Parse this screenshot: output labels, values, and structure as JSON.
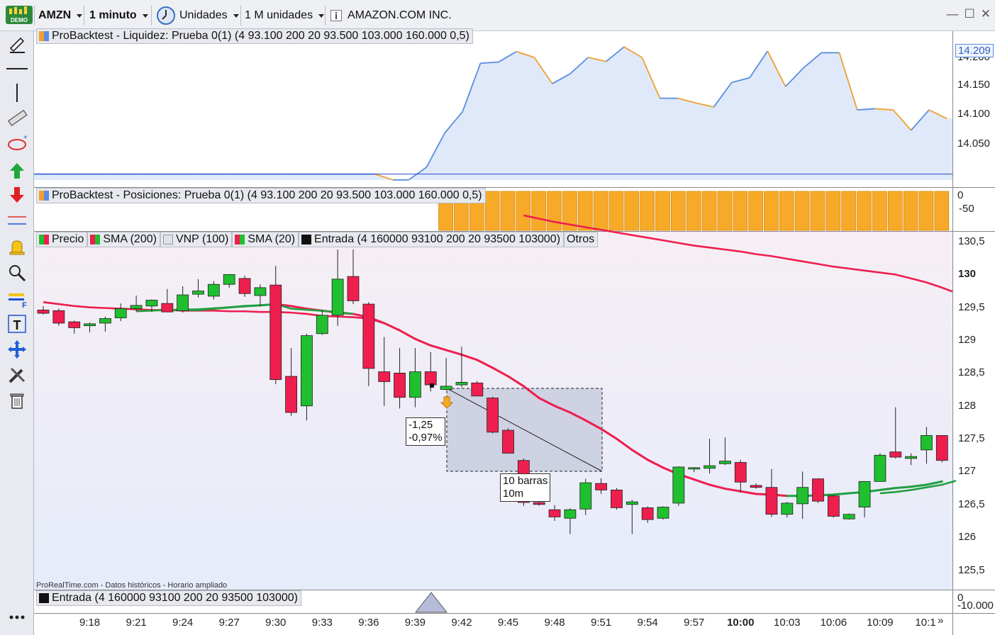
{
  "toolbar": {
    "logo_text": "DEMO",
    "symbol": "AMZN",
    "interval": "1 minuto",
    "units": "Unidades",
    "units_amount": "1 M unidades",
    "info_icon": "info-icon",
    "instrument_name": "AMAZON.COM INC."
  },
  "panels": {
    "liquidity": {
      "title": "ProBacktest - Liquidez: Prueba 0(1) (4 93.100 200 20 93.500 103.000 160.000 0,5)",
      "last_value": "14.209",
      "ticks": [
        "14.200",
        "14.150",
        "14.100",
        "14.050"
      ],
      "values": [
        14000,
        14000,
        14000,
        14000,
        14000,
        14000,
        14000,
        14000,
        14000,
        14000,
        14000,
        14000,
        14000,
        14000,
        14000,
        14000,
        14000,
        14000,
        14000,
        14000,
        13990,
        13990,
        14012,
        14070,
        14107,
        14190,
        14192,
        14210,
        14200,
        14155,
        14172,
        14200,
        14193,
        14218,
        14200,
        14130,
        14130,
        14122,
        14115,
        14157,
        14165,
        14211,
        14150,
        14182,
        14208,
        14208,
        14110,
        14112,
        14110,
        14075,
        14110,
        14095
      ],
      "color_up": "#5b8de0",
      "color_down": "#f0a030"
    },
    "positions": {
      "title": "ProBacktest - Posiciones: Prueba 0(1) (4 93.100 200 20 93.500 103.000 160.000 0,5)",
      "ticks": [
        "0",
        "-50"
      ],
      "start_bar": 26,
      "bar_color": "#f7a928"
    },
    "price": {
      "legend": [
        {
          "label": "Precio",
          "icon": "candles-icon"
        },
        {
          "label": "SMA (200)",
          "icon": "sma-icon"
        },
        {
          "label": "VNP (100)",
          "icon": "vnp-icon"
        },
        {
          "label": "SMA (20)",
          "icon": "sma-icon"
        },
        {
          "label": "Entrada (4 160000 93100 200 20 93500 103000)",
          "icon": "entry-icon"
        },
        {
          "label": "Otros",
          "icon": ""
        }
      ],
      "ticks": [
        "130,5",
        "130",
        "129,5",
        "129",
        "128,5",
        "128",
        "127,5",
        "127",
        "126,5",
        "126",
        "125,5"
      ],
      "bold_tick": "130",
      "source_note": "ProRealTime.com - Datos históricos - Horario ampliado",
      "measure": {
        "change": "-1,25",
        "percent": "-0,97%",
        "bars": "10 barras",
        "duration": "10m"
      }
    },
    "entry": {
      "title": "Entrada (4 160000 93100 200 20 93500 103000)",
      "ticks": [
        "0",
        "-10.000"
      ]
    }
  },
  "xaxis": {
    "labels": [
      "9:18",
      "9:21",
      "9:24",
      "9:27",
      "9:30",
      "9:33",
      "9:36",
      "9:39",
      "9:42",
      "9:45",
      "9:48",
      "9:51",
      "9:54",
      "9:57",
      "10:00",
      "10:03",
      "10:06",
      "10:09",
      "10:1"
    ],
    "bold_label": "10:00"
  },
  "chart_data": {
    "type": "candlestick",
    "candles": [
      {
        "o": 129.46,
        "h": 129.52,
        "l": 129.39,
        "c": 129.41
      },
      {
        "o": 129.45,
        "h": 129.48,
        "l": 129.22,
        "c": 129.26
      },
      {
        "o": 129.28,
        "h": 129.3,
        "l": 129.1,
        "c": 129.19
      },
      {
        "o": 129.22,
        "h": 129.27,
        "l": 129.12,
        "c": 129.25
      },
      {
        "o": 129.26,
        "h": 129.36,
        "l": 129.13,
        "c": 129.33
      },
      {
        "o": 129.34,
        "h": 129.56,
        "l": 129.29,
        "c": 129.48
      },
      {
        "o": 129.48,
        "h": 129.68,
        "l": 129.44,
        "c": 129.53
      },
      {
        "o": 129.52,
        "h": 129.62,
        "l": 129.43,
        "c": 129.61
      },
      {
        "o": 129.56,
        "h": 129.78,
        "l": 129.47,
        "c": 129.43
      },
      {
        "o": 129.45,
        "h": 129.82,
        "l": 129.42,
        "c": 129.69
      },
      {
        "o": 129.7,
        "h": 129.93,
        "l": 129.65,
        "c": 129.75
      },
      {
        "o": 129.67,
        "h": 129.9,
        "l": 129.62,
        "c": 129.85
      },
      {
        "o": 129.85,
        "h": 130.0,
        "l": 129.8,
        "c": 130.0
      },
      {
        "o": 129.94,
        "h": 129.98,
        "l": 129.66,
        "c": 129.71
      },
      {
        "o": 129.68,
        "h": 129.85,
        "l": 129.52,
        "c": 129.8
      },
      {
        "o": 129.84,
        "h": 130.13,
        "l": 128.33,
        "c": 128.4
      },
      {
        "o": 128.45,
        "h": 128.88,
        "l": 127.85,
        "c": 127.9
      },
      {
        "o": 128.0,
        "h": 129.1,
        "l": 127.78,
        "c": 129.07
      },
      {
        "o": 129.1,
        "h": 129.45,
        "l": 129.08,
        "c": 129.38
      },
      {
        "o": 129.38,
        "h": 130.38,
        "l": 129.22,
        "c": 129.93
      },
      {
        "o": 129.97,
        "h": 130.38,
        "l": 129.55,
        "c": 129.6
      },
      {
        "o": 129.55,
        "h": 129.58,
        "l": 128.3,
        "c": 128.57
      },
      {
        "o": 128.52,
        "h": 129.05,
        "l": 128.0,
        "c": 128.37
      },
      {
        "o": 128.5,
        "h": 128.88,
        "l": 127.96,
        "c": 128.13
      },
      {
        "o": 128.13,
        "h": 128.88,
        "l": 127.98,
        "c": 128.52
      },
      {
        "o": 128.52,
        "h": 128.82,
        "l": 128.22,
        "c": 128.32
      },
      {
        "o": 128.25,
        "h": 128.73,
        "l": 128.24,
        "c": 128.3
      },
      {
        "o": 128.32,
        "h": 128.9,
        "l": 128.28,
        "c": 128.36
      },
      {
        "o": 128.35,
        "h": 128.38,
        "l": 128.15,
        "c": 128.15
      },
      {
        "o": 128.12,
        "h": 128.14,
        "l": 127.58,
        "c": 127.6
      },
      {
        "o": 127.63,
        "h": 127.66,
        "l": 127.28,
        "c": 127.28
      },
      {
        "o": 127.17,
        "h": 127.2,
        "l": 126.48,
        "c": 126.53
      },
      {
        "o": 126.53,
        "h": 126.55,
        "l": 126.48,
        "c": 126.5
      },
      {
        "o": 126.42,
        "h": 126.49,
        "l": 126.25,
        "c": 126.31
      },
      {
        "o": 126.29,
        "h": 126.44,
        "l": 126.05,
        "c": 126.42
      },
      {
        "o": 126.43,
        "h": 126.89,
        "l": 126.34,
        "c": 126.83
      },
      {
        "o": 126.82,
        "h": 126.9,
        "l": 126.66,
        "c": 126.72
      },
      {
        "o": 126.72,
        "h": 126.75,
        "l": 126.42,
        "c": 126.45
      },
      {
        "o": 126.5,
        "h": 126.57,
        "l": 126.05,
        "c": 126.54
      },
      {
        "o": 126.45,
        "h": 126.47,
        "l": 126.22,
        "c": 126.27
      },
      {
        "o": 126.29,
        "h": 126.47,
        "l": 126.27,
        "c": 126.46
      },
      {
        "o": 126.52,
        "h": 127.08,
        "l": 126.48,
        "c": 127.07
      },
      {
        "o": 127.04,
        "h": 127.07,
        "l": 126.99,
        "c": 127.06
      },
      {
        "o": 127.05,
        "h": 127.5,
        "l": 126.97,
        "c": 127.09
      },
      {
        "o": 127.12,
        "h": 127.52,
        "l": 127.1,
        "c": 127.16
      },
      {
        "o": 127.14,
        "h": 127.18,
        "l": 126.68,
        "c": 126.84
      },
      {
        "o": 126.79,
        "h": 126.82,
        "l": 126.74,
        "c": 126.76
      },
      {
        "o": 126.76,
        "h": 127.04,
        "l": 126.31,
        "c": 126.35
      },
      {
        "o": 126.35,
        "h": 126.54,
        "l": 126.3,
        "c": 126.52
      },
      {
        "o": 126.51,
        "h": 127.0,
        "l": 126.28,
        "c": 126.76
      },
      {
        "o": 126.89,
        "h": 126.9,
        "l": 126.52,
        "c": 126.55
      },
      {
        "o": 126.63,
        "h": 126.64,
        "l": 126.3,
        "c": 126.32
      },
      {
        "o": 126.28,
        "h": 126.36,
        "l": 126.27,
        "c": 126.35
      },
      {
        "o": 126.46,
        "h": 126.85,
        "l": 126.3,
        "c": 126.85
      },
      {
        "o": 126.85,
        "h": 127.28,
        "l": 126.85,
        "c": 127.25
      },
      {
        "o": 127.3,
        "h": 127.98,
        "l": 127.2,
        "c": 127.22
      },
      {
        "o": 127.2,
        "h": 127.28,
        "l": 127.1,
        "c": 127.23
      },
      {
        "o": 127.33,
        "h": 127.68,
        "l": 127.12,
        "c": 127.55
      },
      {
        "o": 127.55,
        "h": 127.55,
        "l": 127.14,
        "c": 127.17
      }
    ],
    "sma20": [
      null,
      null,
      null,
      null,
      null,
      null,
      null,
      null,
      129.46,
      129.46,
      129.46,
      129.48,
      129.5,
      129.52,
      129.53,
      129.55,
      129.52,
      129.48,
      129.45,
      129.42,
      129.4,
      129.35,
      129.26,
      129.15,
      129.02,
      128.92,
      128.85,
      128.78,
      128.7,
      128.58,
      128.45,
      128.3,
      128.12,
      128.0,
      127.9,
      127.78,
      127.65,
      127.5,
      127.33,
      127.18,
      127.06,
      126.96,
      126.88,
      126.8,
      126.74,
      126.7,
      126.66,
      126.65,
      126.63,
      126.63,
      126.64,
      126.65,
      126.67,
      126.69,
      126.72,
      126.75,
      126.77,
      126.8,
      126.85
    ],
    "sma200_start": 129.58,
    "sma200": [
      129.58,
      129.57,
      129.55,
      129.53,
      129.51,
      129.5,
      129.49,
      129.48,
      129.47,
      129.46,
      129.46,
      129.46,
      129.47,
      129.47,
      129.48,
      129.47,
      129.46,
      129.45,
      129.45,
      129.45,
      129.45,
      129.45,
      129.44,
      129.43,
      129.43,
      129.43,
      129.43,
      129.43,
      129.43,
      129.43,
      129.43,
      130.9,
      130.85,
      130.8,
      130.76,
      130.72,
      130.68,
      130.64,
      130.6,
      130.56,
      130.52,
      130.48,
      130.44,
      130.41,
      130.38,
      130.35,
      130.31,
      130.28,
      130.24,
      130.2,
      130.16,
      130.12,
      130.09,
      130.06,
      130.03,
      130.0,
      129.94,
      129.88,
      129.8
    ],
    "ylim": [
      125.3,
      130.6
    ]
  }
}
